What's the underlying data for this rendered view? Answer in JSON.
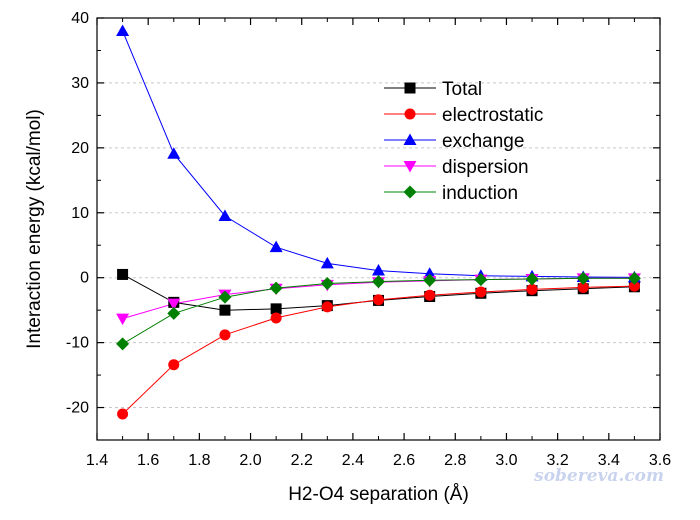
{
  "chart_data": {
    "type": "line",
    "title": "",
    "xlabel": "H2-O4 separation (Å)",
    "ylabel": "Interaction energy (kcal/mol)",
    "xlim": [
      1.4,
      3.6
    ],
    "ylim": [
      -25,
      40
    ],
    "x_ticks": [
      "1.4",
      "1.6",
      "1.8",
      "2.0",
      "2.2",
      "2.4",
      "2.6",
      "2.8",
      "3.0",
      "3.2",
      "3.4",
      "3.6"
    ],
    "y_ticks": [
      "-20",
      "-10",
      "0",
      "10",
      "20",
      "30",
      "40"
    ],
    "grid": "horizontal dashed",
    "legend_position": "upper-right",
    "x": [
      1.5,
      1.7,
      1.9,
      2.1,
      2.3,
      2.5,
      2.7,
      2.9,
      3.1,
      3.3,
      3.5
    ],
    "series": [
      {
        "name": "Total",
        "color": "#000000",
        "marker": "square",
        "values": [
          0.5,
          -3.8,
          -5.0,
          -4.8,
          -4.3,
          -3.5,
          -2.9,
          -2.4,
          -2.0,
          -1.7,
          -1.4
        ]
      },
      {
        "name": "electrostatic",
        "color": "#ff0000",
        "marker": "circle",
        "values": [
          -21.0,
          -13.4,
          -8.8,
          -6.2,
          -4.5,
          -3.4,
          -2.7,
          -2.2,
          -1.8,
          -1.5,
          -1.3
        ]
      },
      {
        "name": "exchange",
        "color": "#0000ff",
        "marker": "triangle-up",
        "values": [
          38.0,
          19.1,
          9.5,
          4.7,
          2.2,
          1.1,
          0.6,
          0.3,
          0.2,
          0.1,
          0.05
        ]
      },
      {
        "name": "dispersion",
        "color": "#ff00ff",
        "marker": "triangle-down",
        "values": [
          -6.3,
          -4.0,
          -2.6,
          -1.7,
          -1.1,
          -0.7,
          -0.5,
          -0.3,
          -0.2,
          -0.1,
          -0.1
        ]
      },
      {
        "name": "induction",
        "color": "#008000",
        "marker": "diamond",
        "values": [
          -10.2,
          -5.5,
          -3.0,
          -1.6,
          -0.9,
          -0.6,
          -0.4,
          -0.3,
          -0.2,
          -0.1,
          -0.1
        ]
      }
    ]
  },
  "watermark": "sobereva.com"
}
